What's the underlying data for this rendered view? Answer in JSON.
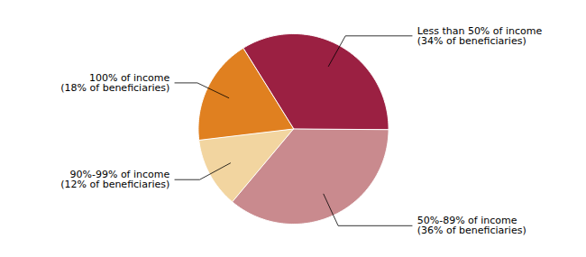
{
  "chart_data": {
    "type": "pie",
    "categories": [
      "Less than 50% of income\n(34% of beneficiaries)",
      "50%-89% of income\n(36% of beneficiaries)",
      "90%-99% of income\n(12% of beneficiaries)",
      "100% of income\n(18% of beneficiaries)"
    ],
    "values": [
      34,
      36,
      12,
      18
    ],
    "colors": [
      "#9b2042",
      "#c98a8e",
      "#f2d5a0",
      "#e08020"
    ]
  }
}
